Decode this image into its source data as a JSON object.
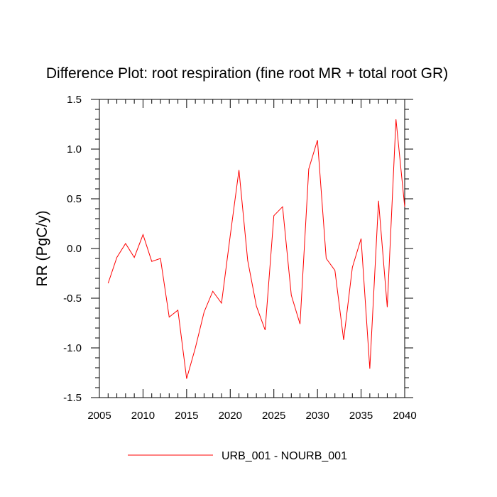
{
  "chart_data": {
    "type": "line",
    "title": "Difference Plot: root respiration (fine root MR + total root GR)",
    "xlabel": "",
    "ylabel": "RR  (PgC/y)",
    "xlim": [
      2005,
      2040
    ],
    "ylim": [
      -1.5,
      1.5
    ],
    "x_ticks": [
      2005,
      2010,
      2015,
      2020,
      2025,
      2030,
      2035,
      2040
    ],
    "x_tick_labels": [
      "2005",
      "2010",
      "2015",
      "2020",
      "2025",
      "2030",
      "2035",
      "2040"
    ],
    "y_ticks": [
      -1.5,
      -1.0,
      -0.5,
      0.0,
      0.5,
      1.0,
      1.5
    ],
    "y_tick_labels": [
      "-1.5",
      "-1.0",
      "-0.5",
      "0.0",
      "0.5",
      "1.0",
      "1.5"
    ],
    "grid": false,
    "legend_position": "bottom-center",
    "series": [
      {
        "name": "URB_001 - NOURB_001",
        "color": "#ff0000",
        "x": [
          2006,
          2007,
          2008,
          2009,
          2010,
          2011,
          2012,
          2013,
          2014,
          2015,
          2016,
          2017,
          2018,
          2019,
          2020,
          2021,
          2022,
          2023,
          2024,
          2025,
          2026,
          2027,
          2028,
          2029,
          2030,
          2031,
          2032,
          2033,
          2034,
          2035,
          2036,
          2037,
          2038,
          2039,
          2040
        ],
        "values": [
          -0.35,
          -0.09,
          0.05,
          -0.09,
          0.14,
          -0.13,
          -0.1,
          -0.69,
          -0.62,
          -1.31,
          -1.0,
          -0.64,
          -0.43,
          -0.55,
          0.13,
          0.79,
          -0.12,
          -0.58,
          -0.82,
          0.33,
          0.42,
          -0.47,
          -0.76,
          0.8,
          1.09,
          -0.1,
          -0.22,
          -0.92,
          -0.19,
          0.1,
          -1.21,
          0.48,
          -0.59,
          1.3,
          0.42
        ]
      }
    ]
  }
}
